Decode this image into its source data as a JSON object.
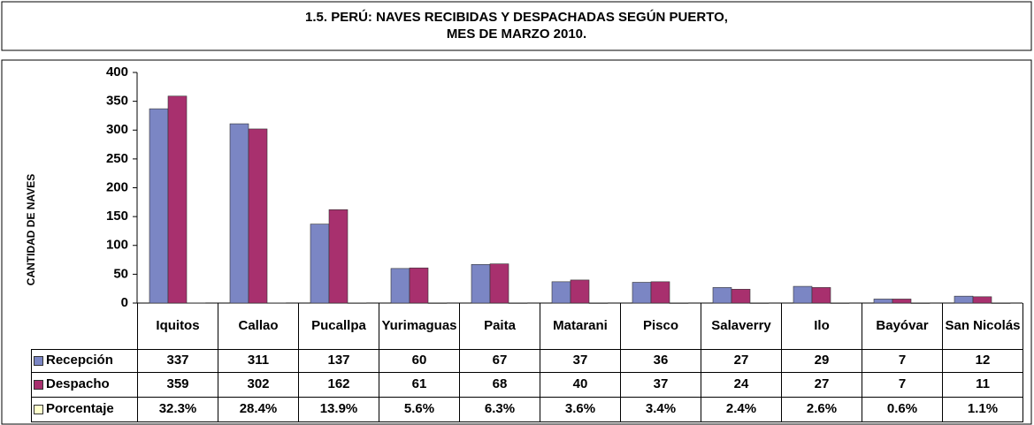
{
  "chart_data": {
    "type": "bar",
    "title": [
      "1.5. PERÚ: NAVES RECIBIDAS Y DESPACHADAS SEGÚN PUERTO,",
      "MES DE MARZO 2010."
    ],
    "y_label": "CANTIDAD DE NAVES",
    "categories": [
      "Iquitos",
      "Callao",
      "Pucallpa",
      "Yurimaguas",
      "Paita",
      "Matarani",
      "Pisco",
      "Salaverry",
      "Ilo",
      "Bayóvar",
      "San Nicolás"
    ],
    "series": [
      {
        "name": "Recepción",
        "color": "#7b86c4",
        "values": [
          337,
          311,
          137,
          60,
          67,
          37,
          36,
          27,
          29,
          7,
          12
        ]
      },
      {
        "name": "Despacho",
        "color": "#a8306e",
        "values": [
          359,
          302,
          162,
          61,
          68,
          40,
          37,
          24,
          27,
          7,
          11
        ]
      },
      {
        "name": "Porcentaje",
        "color": "#ffffcc",
        "values": [
          0.323,
          0.284,
          0.139,
          0.056,
          0.063,
          0.036,
          0.034,
          0.024,
          0.026,
          0.006,
          0.011
        ],
        "value_labels": [
          "32.3%",
          "28.4%",
          "13.9%",
          "5.6%",
          "6.3%",
          "3.6%",
          "3.4%",
          "2.4%",
          "2.6%",
          "0.6%",
          "1.1%"
        ]
      }
    ],
    "ylim": [
      0,
      400
    ],
    "yticks": [
      0,
      50,
      100,
      150,
      200,
      250,
      300,
      350,
      400
    ],
    "grid": false
  }
}
